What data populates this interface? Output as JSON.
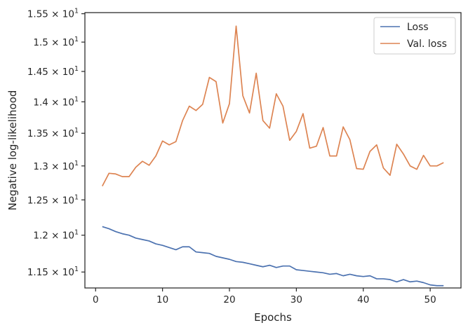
{
  "chart_data": {
    "type": "line",
    "title": "",
    "xlabel": "Epochs",
    "ylabel": "Negative log-likelihood",
    "xlim": [
      -1.6,
      54.6
    ],
    "ylim": [
      11.29,
      15.52
    ],
    "yscale": "log",
    "grid": false,
    "legend_position": "top-right",
    "x_ticks": [
      0,
      10,
      20,
      30,
      40,
      50
    ],
    "x_tick_labels": [
      "0",
      "10",
      "20",
      "30",
      "40",
      "50"
    ],
    "y_ticks": [
      11.5,
      12.0,
      12.5,
      13.0,
      13.5,
      14.0,
      14.5,
      15.0,
      15.5
    ],
    "y_tick_mantissas": [
      "1.15",
      "1.2",
      "1.25",
      "1.3",
      "1.35",
      "1.4",
      "1.45",
      "1.5",
      "1.55"
    ],
    "y_tick_base": "10",
    "y_tick_exponent": "1",
    "y_tick_times": "×",
    "x": [
      1,
      2,
      3,
      4,
      5,
      6,
      7,
      8,
      9,
      10,
      11,
      12,
      13,
      14,
      15,
      16,
      17,
      18,
      19,
      20,
      21,
      22,
      23,
      24,
      25,
      26,
      27,
      28,
      29,
      30,
      31,
      32,
      33,
      34,
      35,
      36,
      37,
      38,
      39,
      40,
      41,
      42,
      43,
      44,
      45,
      46,
      47,
      48,
      49,
      50,
      51,
      52
    ],
    "series": [
      {
        "name": "Loss",
        "color": "#4c72b0",
        "values": [
          12.12,
          12.09,
          12.05,
          12.02,
          12.0,
          11.96,
          11.94,
          11.92,
          11.88,
          11.86,
          11.83,
          11.8,
          11.84,
          11.84,
          11.77,
          11.76,
          11.75,
          11.71,
          11.69,
          11.67,
          11.64,
          11.63,
          11.61,
          11.59,
          11.57,
          11.59,
          11.56,
          11.58,
          11.58,
          11.53,
          11.52,
          11.51,
          11.5,
          11.49,
          11.47,
          11.48,
          11.45,
          11.47,
          11.45,
          11.44,
          11.45,
          11.41,
          11.41,
          11.4,
          11.37,
          11.4,
          11.37,
          11.38,
          11.36,
          11.33,
          11.32,
          11.32
        ]
      },
      {
        "name": "Val. loss",
        "color": "#dd8452",
        "values": [
          12.7,
          12.89,
          12.88,
          12.84,
          12.84,
          12.98,
          13.07,
          13.01,
          13.15,
          13.38,
          13.32,
          13.37,
          13.7,
          13.93,
          13.86,
          13.96,
          14.4,
          14.33,
          13.66,
          13.97,
          15.28,
          14.1,
          13.82,
          14.47,
          13.7,
          13.58,
          14.13,
          13.93,
          13.39,
          13.53,
          13.81,
          13.27,
          13.3,
          13.59,
          13.15,
          13.15,
          13.6,
          13.4,
          12.96,
          12.95,
          13.22,
          13.32,
          12.97,
          12.86,
          13.33,
          13.18,
          13.0,
          12.95,
          13.16,
          13.0,
          13.0,
          13.05
        ]
      }
    ]
  }
}
